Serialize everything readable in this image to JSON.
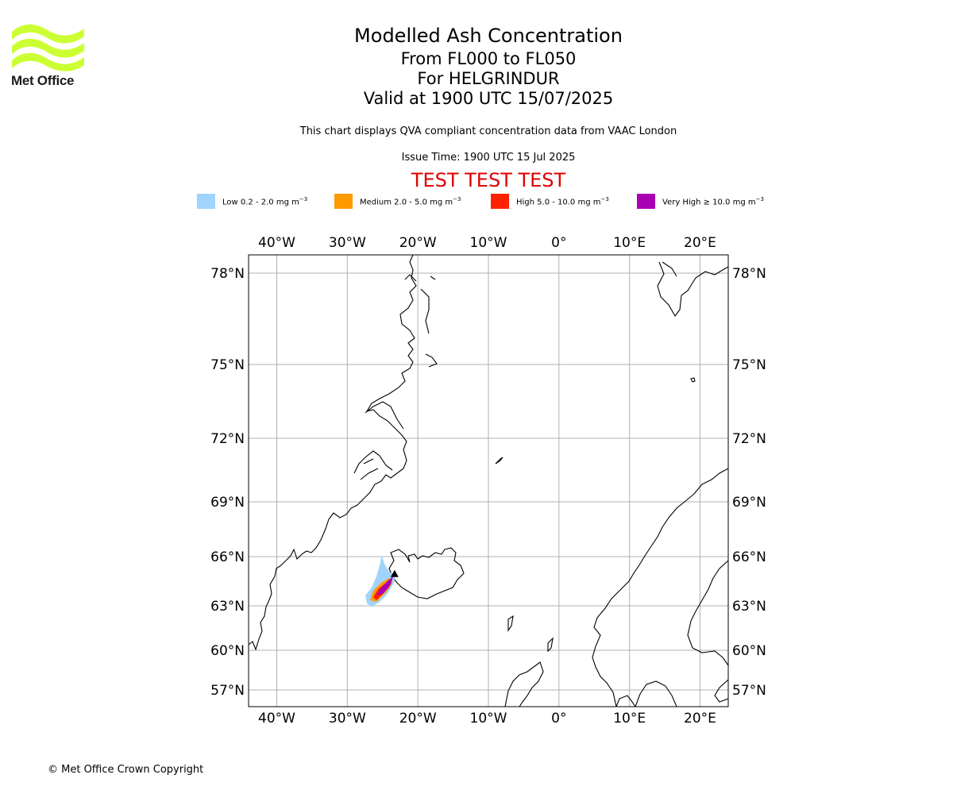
{
  "header": {
    "title": "Modelled Ash Concentration",
    "flight_levels": "From FL000 to FL050",
    "volcano": "For HELGRINDUR",
    "valid": "Valid at 1900 UTC 15/07/2025",
    "description": "This chart displays QVA compliant concentration data from VAAC London",
    "issue_time": "Issue Time: 1900 UTC 15 Jul 2025",
    "test_banner": "TEST TEST TEST"
  },
  "logo": {
    "text": "Met Office",
    "color": "#ccff33"
  },
  "legend": [
    {
      "label": "Low 0.2 - 2.0 mg m",
      "color": "#a0d4fc"
    },
    {
      "label": "Medium 2.0 - 5.0 mg m",
      "color": "#ff9900"
    },
    {
      "label": "High 5.0 - 10.0 mg m",
      "color": "#ff2200"
    },
    {
      "label": "Very High  ≥  10.0 mg m",
      "color": "#aa00b4"
    }
  ],
  "legend_unit_exponent": "−3",
  "map": {
    "lon_range": [
      -44,
      24
    ],
    "lat_range": [
      56,
      79
    ],
    "lon_ticks": [
      {
        "value": -40,
        "label": "40°W"
      },
      {
        "value": -30,
        "label": "30°W"
      },
      {
        "value": -20,
        "label": "20°W"
      },
      {
        "value": -10,
        "label": "10°W"
      },
      {
        "value": 0,
        "label": "0°"
      },
      {
        "value": 10,
        "label": "10°E"
      },
      {
        "value": 20,
        "label": "20°E"
      }
    ],
    "lat_ticks": [
      {
        "value": 78,
        "label": "78°N"
      },
      {
        "value": 75,
        "label": "75°N"
      },
      {
        "value": 72,
        "label": "72°N"
      },
      {
        "value": 69,
        "label": "69°N"
      },
      {
        "value": 66,
        "label": "66°N"
      },
      {
        "value": 63,
        "label": "63°N"
      },
      {
        "value": 60,
        "label": "60°N"
      },
      {
        "value": 57,
        "label": "57°N"
      }
    ],
    "grid": true,
    "volcano_location": {
      "lon": -23.3,
      "lat": 64.9
    }
  },
  "footer": {
    "copyright": "© Met Office Crown Copyright"
  }
}
